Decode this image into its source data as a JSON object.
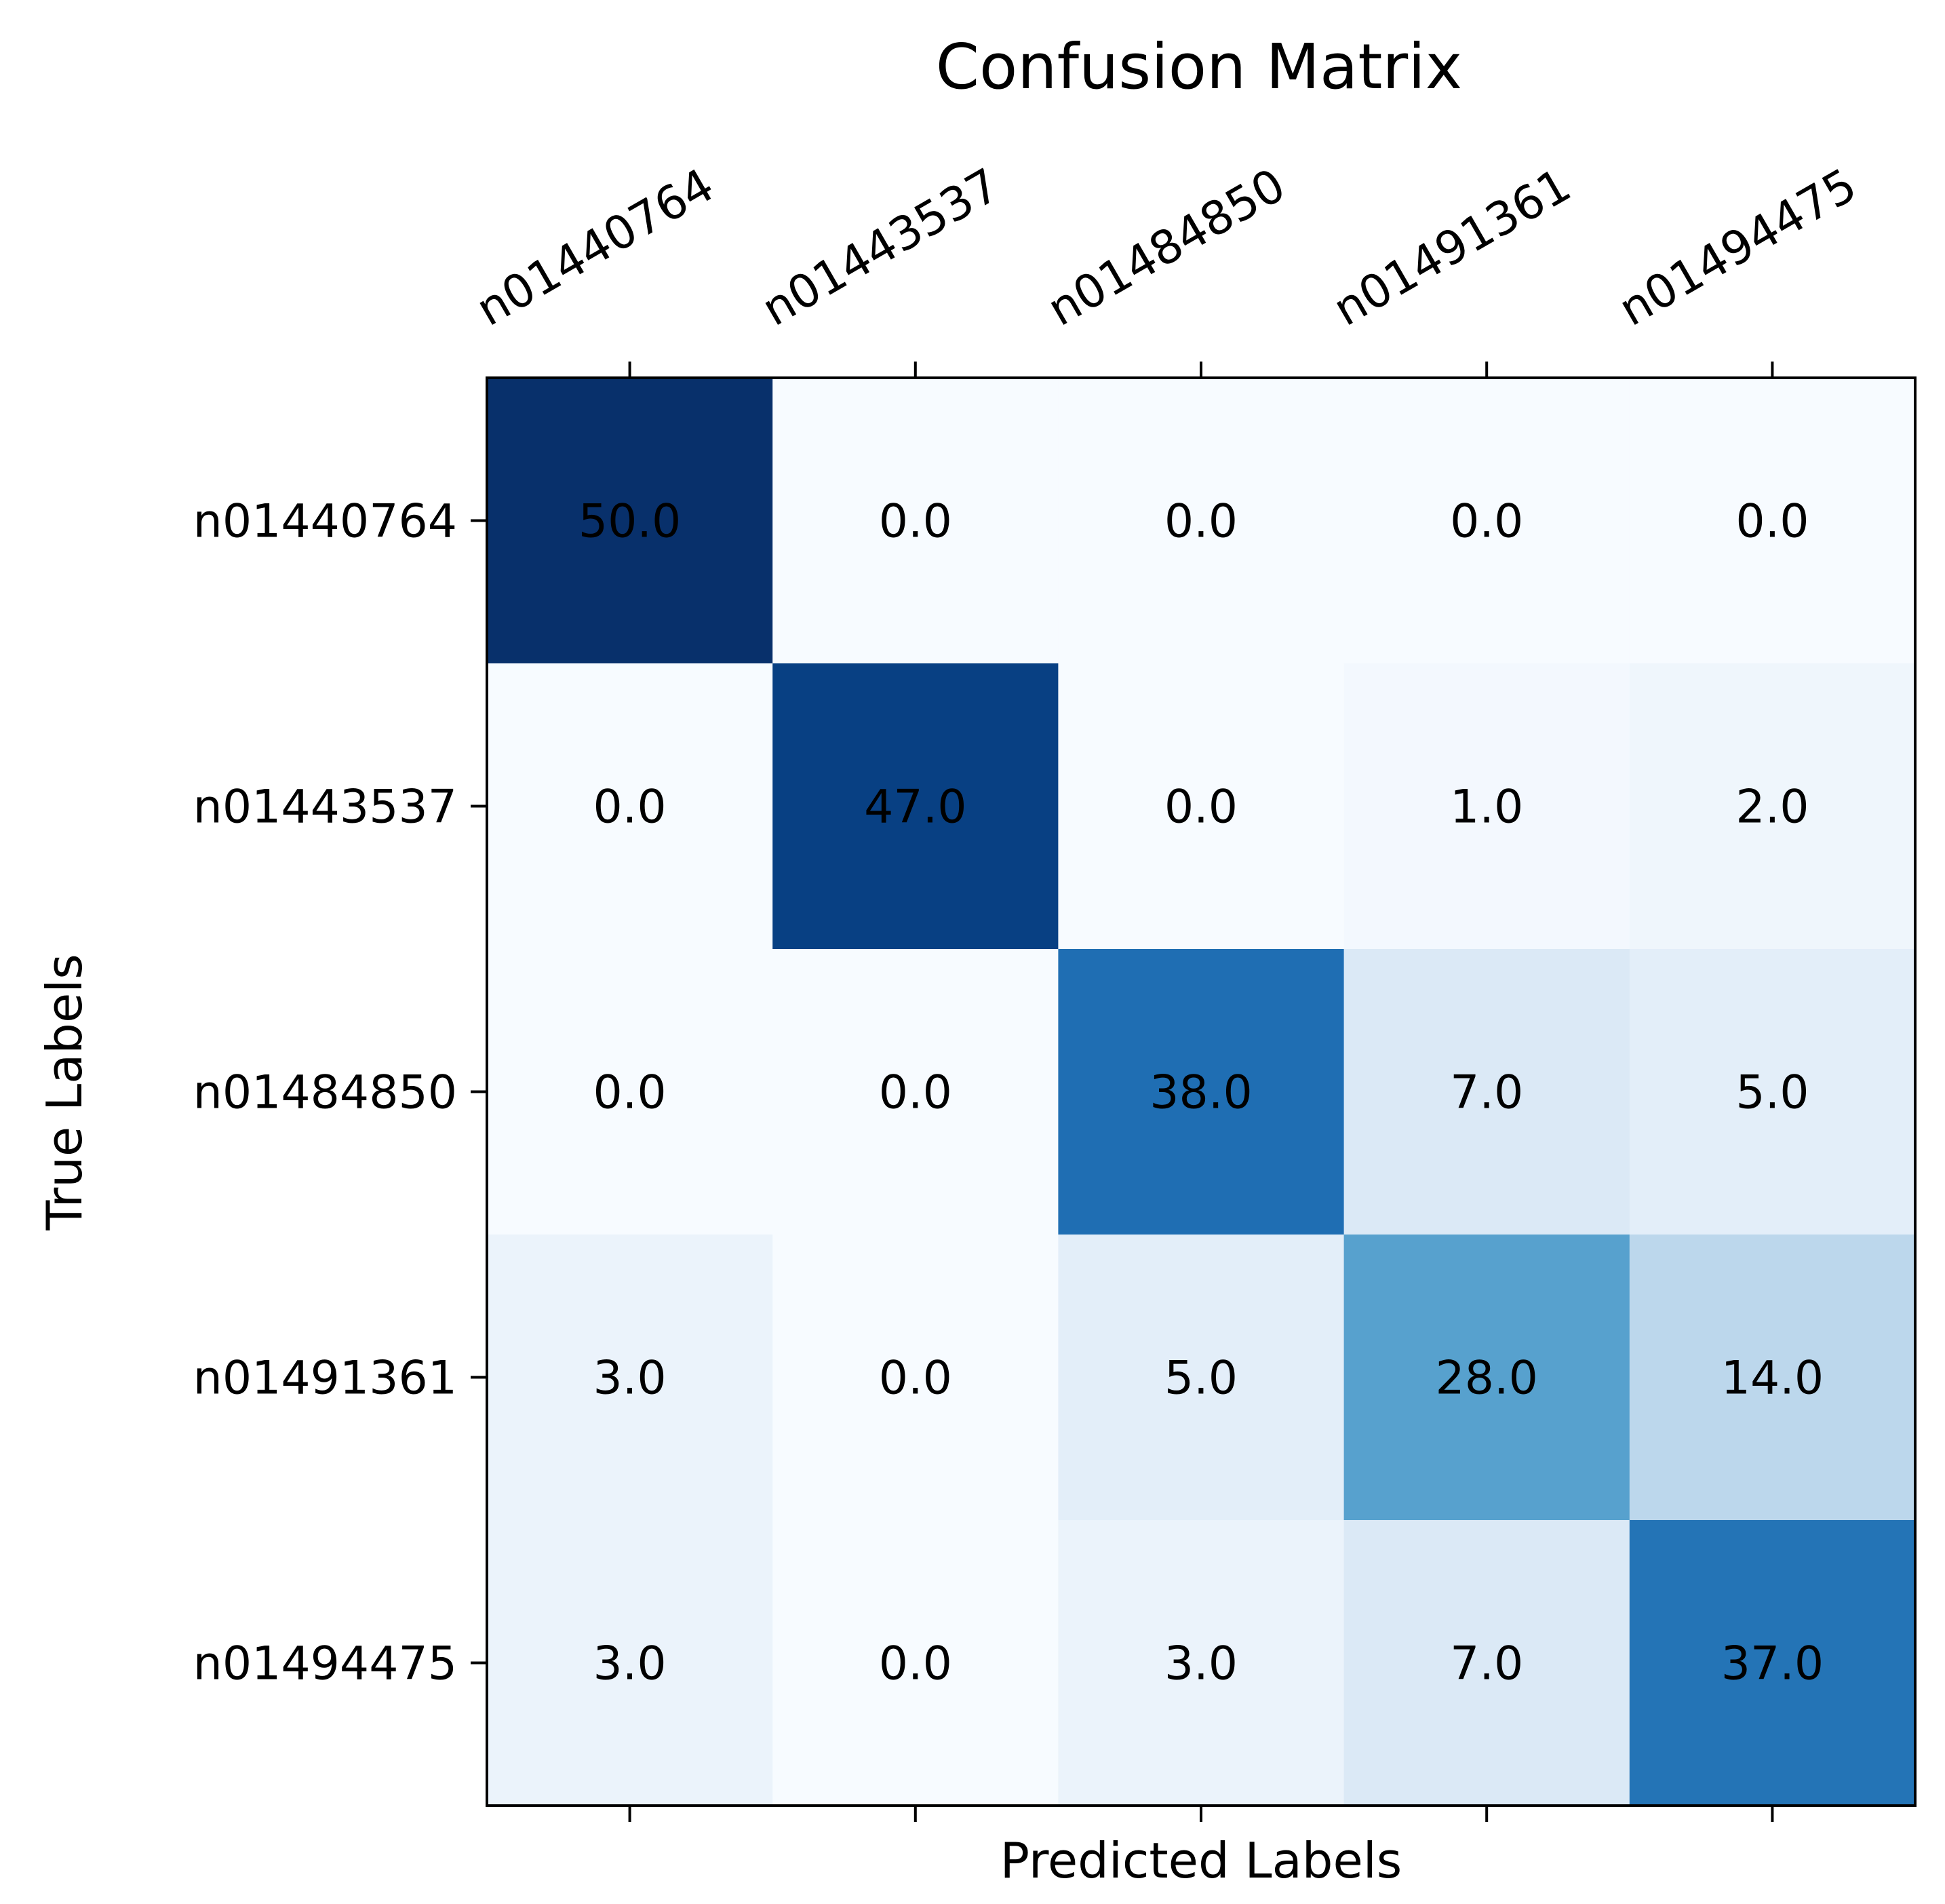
{
  "chart_data": {
    "type": "heatmap",
    "title": "Confusion Matrix",
    "xlabel": "Predicted Labels",
    "ylabel": "True Labels",
    "x_categories": [
      "n01440764",
      "n01443537",
      "n01484850",
      "n01491361",
      "n01494475"
    ],
    "y_categories": [
      "n01440764",
      "n01443537",
      "n01484850",
      "n01491361",
      "n01494475"
    ],
    "values": [
      [
        50.0,
        0.0,
        0.0,
        0.0,
        0.0
      ],
      [
        0.0,
        47.0,
        0.0,
        1.0,
        2.0
      ],
      [
        0.0,
        0.0,
        38.0,
        7.0,
        5.0
      ],
      [
        3.0,
        0.0,
        5.0,
        28.0,
        14.0
      ],
      [
        3.0,
        0.0,
        3.0,
        7.0,
        37.0
      ]
    ],
    "value_format": "0.0",
    "colormap": "Blues",
    "vmin": 0,
    "vmax": 50,
    "x_tick_position": "top",
    "grid": false,
    "colors": {
      "low": "#f7fbff",
      "high": "#08306b",
      "text": "#000000",
      "axis": "#000000"
    }
  }
}
